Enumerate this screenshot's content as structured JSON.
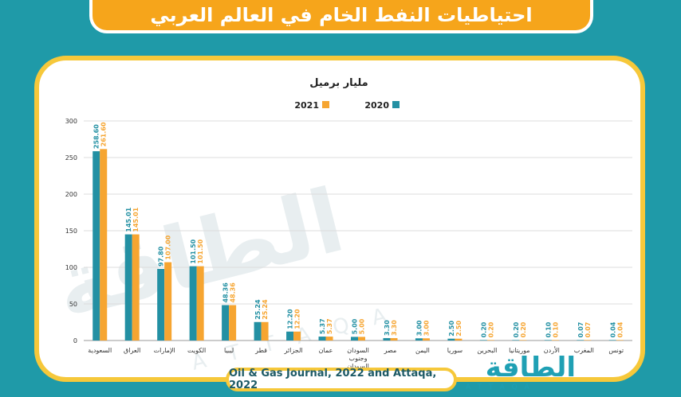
{
  "title": "احتياطيات النفط الخام في العالم العربي",
  "source": "Oil & Gas Journal, 2022 and Attaqa, 2022",
  "logo": {
    "name": "الطاقة",
    "latin": "ATTAQA"
  },
  "colors": {
    "s2020": "#2390a3",
    "s2021": "#f6a531",
    "background": "#1f9aa8",
    "accent": "#f6a51b",
    "frame": "#f6c83a"
  },
  "chart_data": {
    "type": "bar",
    "title": "مليار برميل",
    "ylim": [
      0,
      300
    ],
    "yticks": [
      0,
      50,
      100,
      150,
      200,
      250,
      300
    ],
    "grid": true,
    "legend": "top",
    "categories": [
      "السعودية",
      "العراق",
      "الإمارات",
      "الكويت",
      "ليبيا",
      "قطر",
      "الجزائر",
      "عمان",
      "السودان وجنوب السودان",
      "مصر",
      "اليمن",
      "سوريا",
      "البحرين",
      "موريتانيا",
      "الأردن",
      "المغرب",
      "تونس"
    ],
    "series": [
      {
        "name": "2020",
        "values": [
          258.6,
          145.01,
          97.8,
          101.5,
          48.36,
          25.24,
          12.2,
          5.37,
          5.0,
          3.3,
          3.0,
          2.5,
          0.2,
          0.2,
          0.1,
          0.07,
          0.04
        ],
        "labels": [
          "258.60",
          "145.01",
          "97.80",
          "101.50",
          "48.36",
          "25.24",
          "12.20",
          "5.37",
          "5.00",
          "3.30",
          "3.00",
          "2.50",
          "0.20",
          "0.20",
          "0.10",
          "0.07",
          "0.04"
        ]
      },
      {
        "name": "2021",
        "values": [
          261.6,
          145.01,
          107.0,
          101.5,
          48.36,
          25.24,
          12.2,
          5.37,
          5.0,
          3.3,
          3.0,
          2.5,
          0.2,
          0.2,
          0.1,
          0.07,
          0.04
        ],
        "labels": [
          "261.60",
          "145.01",
          "107.00",
          "101.50",
          "48.36",
          "25.24",
          "12.20",
          "5.37",
          "5.00",
          "3.30",
          "3.00",
          "2.50",
          "0.20",
          "0.20",
          "0.10",
          "0.07",
          "0.04"
        ]
      }
    ]
  }
}
